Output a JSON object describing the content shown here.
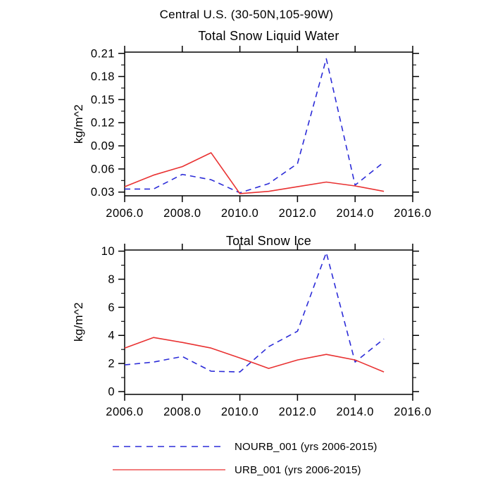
{
  "header": {
    "title": "Central U.S. (30-50N,105-90W)"
  },
  "colors": {
    "nourb_blue": "#2c2cd8",
    "urb_red": "#e93232",
    "axis": "#000000",
    "background": "#ffffff"
  },
  "chart_data": [
    {
      "type": "line",
      "title": "Total Snow Liquid Water",
      "xlabel": "",
      "ylabel": "kg/m^2",
      "x": [
        2006,
        2007,
        2008,
        2009,
        2010,
        2011,
        2012,
        2013,
        2014,
        2015
      ],
      "series": [
        {
          "name": "NOURB_001",
          "color": "#2c2cd8",
          "dashed": true,
          "values": [
            0.034,
            0.034,
            0.053,
            0.046,
            0.029,
            0.041,
            0.067,
            0.203,
            0.039,
            0.069
          ]
        },
        {
          "name": "URB_001",
          "color": "#e93232",
          "dashed": false,
          "values": [
            0.037,
            0.052,
            0.063,
            0.081,
            0.028,
            0.031,
            0.037,
            0.043,
            0.038,
            0.031
          ]
        }
      ],
      "xlim": [
        2006,
        2016
      ],
      "xtick_values": [
        2006,
        2008,
        2010,
        2012,
        2014,
        2016
      ],
      "xtick_labels": [
        "2006.0",
        "2008.0",
        "2010.0",
        "2012.0",
        "2014.0",
        "2016.0"
      ],
      "ylim": [
        0.0252,
        0.2116
      ],
      "ytick_values": [
        0.03,
        0.06,
        0.09,
        0.12,
        0.15,
        0.18,
        0.21
      ],
      "ytick_labels": [
        "0.03",
        "0.06",
        "0.09",
        "0.12",
        "0.15",
        "0.18",
        "0.21"
      ],
      "yminor_values": [
        0.045,
        0.075,
        0.105,
        0.135,
        0.165,
        0.195
      ],
      "grid": false
    },
    {
      "type": "line",
      "title": "Total Snow Ice",
      "xlabel": "",
      "ylabel": "kg/m^2",
      "x": [
        2006,
        2007,
        2008,
        2009,
        2010,
        2011,
        2012,
        2013,
        2014,
        2015
      ],
      "series": [
        {
          "name": "NOURB_001",
          "color": "#2c2cd8",
          "dashed": true,
          "values": [
            1.9,
            2.1,
            2.5,
            1.45,
            1.4,
            3.2,
            4.3,
            9.9,
            2.1,
            3.75
          ]
        },
        {
          "name": "URB_001",
          "color": "#e93232",
          "dashed": false,
          "values": [
            3.1,
            3.85,
            3.5,
            3.1,
            2.4,
            1.65,
            2.25,
            2.65,
            2.25,
            1.4
          ]
        }
      ],
      "xlim": [
        2006,
        2016
      ],
      "xtick_values": [
        2006,
        2008,
        2010,
        2012,
        2014,
        2016
      ],
      "xtick_labels": [
        "2006.0",
        "2008.0",
        "2010.0",
        "2012.0",
        "2014.0",
        "2016.0"
      ],
      "ylim": [
        -0.2,
        10.08
      ],
      "ytick_values": [
        0,
        2,
        4,
        6,
        8,
        10
      ],
      "ytick_labels": [
        "0",
        "2",
        "4",
        "6",
        "8",
        "10"
      ],
      "yminor_values": [
        1,
        3,
        5,
        7,
        9
      ],
      "grid": false
    }
  ],
  "legend": {
    "position": "bottom",
    "items": [
      {
        "label": "NOURB_001 (yrs 2006-2015)",
        "series": "NOURB_001",
        "style": "dashed",
        "color": "#2c2cd8"
      },
      {
        "label": "URB_001 (yrs 2006-2015)",
        "series": "URB_001",
        "style": "solid",
        "color": "#e93232"
      }
    ]
  }
}
